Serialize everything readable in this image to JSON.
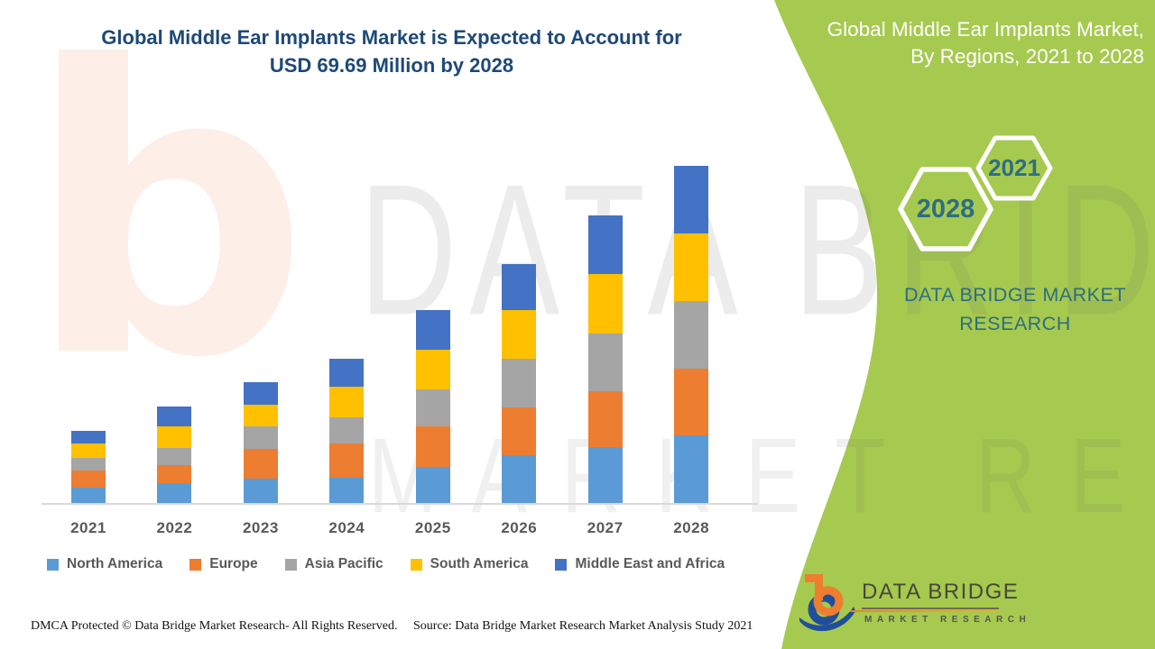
{
  "title": {
    "line1": "Global Middle Ear Implants Market is Expected to Account for",
    "line2": "USD 69.69 Million by 2028"
  },
  "right_panel": {
    "heading_line1": "Global Middle Ear Implants Market,",
    "heading_line2": "By Regions, 2021 to 2028",
    "hexagons": [
      {
        "label": "2028"
      },
      {
        "label": "2021"
      }
    ],
    "brand_line1": "DATA BRIDGE MARKET",
    "brand_line2": "RESEARCH"
  },
  "colors": {
    "panel_green": "#A6C94F",
    "title_navy": "#1E4976",
    "teal_text": "#2D6E80",
    "axis_gray": "#D9D9D9",
    "label_gray": "#595959"
  },
  "watermark": {
    "b_glyph": "b",
    "line1": "DATA BRIDGE",
    "line2": "MARKET RESEARCH"
  },
  "chart_data": {
    "type": "bar",
    "stacked": true,
    "title": "Global Middle Ear Implants Market, By Regions, 2021 to 2028",
    "units": "USD Million",
    "total_2028_label": "69.69",
    "categories": [
      "2021",
      "2022",
      "2023",
      "2024",
      "2025",
      "2026",
      "2027",
      "2028"
    ],
    "series": [
      {
        "name": "North America",
        "color": "#5B9BD5",
        "values": [
          3.2,
          4.1,
          5.0,
          5.2,
          7.4,
          9.9,
          11.5,
          13.9
        ]
      },
      {
        "name": "Europe",
        "color": "#ED7D31",
        "values": [
          3.5,
          3.7,
          6.1,
          7.1,
          8.4,
          9.9,
          11.7,
          13.9
        ]
      },
      {
        "name": "Asia Pacific",
        "color": "#A5A5A5",
        "values": [
          2.6,
          3.5,
          4.8,
          5.4,
          7.6,
          10.0,
          11.9,
          13.9
        ]
      },
      {
        "name": "South America",
        "color": "#FFC000",
        "values": [
          3.0,
          4.5,
          4.5,
          6.3,
          8.2,
          10.0,
          12.3,
          14.0
        ]
      },
      {
        "name": "Middle East and Africa",
        "color": "#4472C4",
        "values": [
          2.6,
          4.1,
          4.5,
          5.8,
          8.2,
          9.5,
          12.1,
          14.0
        ]
      }
    ],
    "totals_estimated": [
      14.9,
      19.9,
      24.9,
      29.8,
      39.8,
      49.3,
      59.5,
      69.69
    ],
    "xlabel": "",
    "ylabel": "",
    "y_axis_shown": false,
    "legend_position": "bottom",
    "grid": false
  },
  "footer": {
    "left": "DMCA Protected © Data Bridge Market Research- All Rights Reserved.",
    "right": "Source: Data Bridge Market Research Market Analysis Study 2021"
  },
  "logo": {
    "name": "DATA BRIDGE",
    "subtitle": "MARKET RESEARCH"
  }
}
